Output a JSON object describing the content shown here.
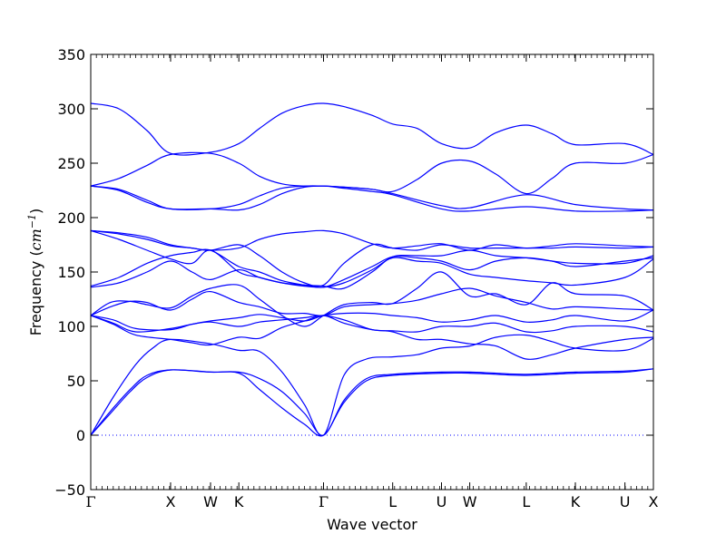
{
  "chart_data": {
    "type": "line",
    "title": "",
    "xlabel": "Wave vector",
    "ylabel_prefix": "Frequency (",
    "ylabel_unit": "cm",
    "ylabel_exp": "−1",
    "ylabel_suffix": ")",
    "ylim": [
      -50,
      350
    ],
    "yticks": [
      -50,
      0,
      50,
      100,
      150,
      200,
      250,
      300,
      350
    ],
    "xlim": [
      0,
      1
    ],
    "grid": false,
    "colors": {
      "bands": "#0000ff",
      "zero_line": "#0000ff",
      "axes": "#000000"
    },
    "kpoints": [
      {
        "label": "Γ",
        "x": 0.0
      },
      {
        "label": "X",
        "x": 0.1419
      },
      {
        "label": "W",
        "x": 0.2129
      },
      {
        "label": "K",
        "x": 0.2632
      },
      {
        "label": "Γ",
        "x": 0.4137
      },
      {
        "label": "L",
        "x": 0.5366
      },
      {
        "label": "U",
        "x": 0.6234
      },
      {
        "label": "W",
        "x": 0.6736
      },
      {
        "label": "L",
        "x": 0.774
      },
      {
        "label": "K",
        "x": 0.8613
      },
      {
        "label": "U",
        "x": 0.9494
      },
      {
        "label": "X",
        "x": 1.0
      }
    ],
    "zero_line": {
      "y": 0,
      "style": "dotted"
    },
    "series": [
      {
        "x": [
          0,
          0.035,
          0.07,
          0.1,
          0.1419,
          0.2129,
          0.2632,
          0.3,
          0.34,
          0.38,
          0.4137,
          0.45,
          0.49,
          0.5366,
          0.6234,
          0.6736,
          0.72,
          0.774,
          0.8613,
          0.9494,
          1.0
        ],
        "y": [
          0,
          20,
          40,
          53,
          60,
          58,
          57,
          42,
          25,
          10,
          0,
          30,
          50,
          55,
          57,
          57,
          56,
          55,
          57,
          58,
          61
        ]
      },
      {
        "x": [
          0,
          0.035,
          0.07,
          0.1,
          0.1419,
          0.2129,
          0.2632,
          0.3,
          0.34,
          0.38,
          0.4137,
          0.45,
          0.49,
          0.5366,
          0.6234,
          0.6736,
          0.72,
          0.774,
          0.8613,
          0.9494,
          1.0
        ],
        "y": [
          0,
          22,
          42,
          55,
          60,
          58,
          58,
          52,
          40,
          20,
          0,
          32,
          52,
          56,
          58,
          58,
          57,
          56,
          58,
          59,
          61
        ]
      },
      {
        "x": [
          0,
          0.04,
          0.08,
          0.11,
          0.1419,
          0.2129,
          0.2632,
          0.3,
          0.34,
          0.38,
          0.4137,
          0.45,
          0.49,
          0.5366,
          0.58,
          0.6234,
          0.6736,
          0.72,
          0.774,
          0.82,
          0.8613,
          0.9494,
          1.0
        ],
        "y": [
          0,
          35,
          65,
          80,
          88,
          84,
          78,
          77,
          58,
          28,
          0,
          55,
          70,
          72,
          74,
          80,
          82,
          90,
          92,
          86,
          80,
          78,
          89
        ]
      },
      {
        "x": [
          0,
          0.04,
          0.08,
          0.1419,
          0.18,
          0.2129,
          0.2632,
          0.3,
          0.34,
          0.38,
          0.4137,
          0.45,
          0.5,
          0.5366,
          0.58,
          0.6234,
          0.6736,
          0.72,
          0.774,
          0.82,
          0.8613,
          0.9494,
          1.0
        ],
        "y": [
          110,
          102,
          92,
          88,
          85,
          83,
          90,
          89,
          99,
          105,
          110,
          103,
          97,
          95,
          88,
          88,
          84,
          82,
          70,
          74,
          80,
          88,
          90
        ]
      },
      {
        "x": [
          0,
          0.04,
          0.08,
          0.1419,
          0.18,
          0.2129,
          0.2632,
          0.3,
          0.34,
          0.38,
          0.4137,
          0.45,
          0.5,
          0.5366,
          0.58,
          0.6234,
          0.6736,
          0.72,
          0.774,
          0.82,
          0.8613,
          0.9494,
          1.0
        ],
        "y": [
          110,
          103,
          95,
          98,
          102,
          104,
          100,
          104,
          106,
          108,
          110,
          106,
          97,
          96,
          95,
          100,
          100,
          103,
          95,
          96,
          100,
          100,
          95
        ]
      },
      {
        "x": [
          0,
          0.04,
          0.08,
          0.1419,
          0.18,
          0.2129,
          0.2632,
          0.3,
          0.34,
          0.38,
          0.4137,
          0.45,
          0.5,
          0.5366,
          0.58,
          0.6234,
          0.6736,
          0.72,
          0.774,
          0.82,
          0.8613,
          0.9494,
          1.0
        ],
        "y": [
          110,
          106,
          98,
          97,
          102,
          105,
          108,
          111,
          108,
          105,
          110,
          112,
          112,
          110,
          108,
          104,
          106,
          110,
          104,
          106,
          110,
          105,
          115
        ]
      },
      {
        "x": [
          0,
          0.035,
          0.07,
          0.1,
          0.1419,
          0.18,
          0.2129,
          0.2632,
          0.3,
          0.34,
          0.38,
          0.4137,
          0.45,
          0.5,
          0.5366,
          0.58,
          0.6234,
          0.6736,
          0.72,
          0.774,
          0.82,
          0.8613,
          0.9494,
          1.0
        ],
        "y": [
          110,
          118,
          123,
          122,
          115,
          125,
          132,
          122,
          118,
          112,
          112,
          110,
          118,
          120,
          121,
          124,
          130,
          135,
          128,
          122,
          116,
          118,
          116,
          115
        ]
      },
      {
        "x": [
          0,
          0.035,
          0.07,
          0.1,
          0.1419,
          0.18,
          0.2129,
          0.2632,
          0.3,
          0.34,
          0.38,
          0.4137,
          0.45,
          0.5,
          0.5366,
          0.58,
          0.6234,
          0.6736,
          0.72,
          0.774,
          0.82,
          0.8613,
          0.9494,
          1.0
        ],
        "y": [
          110,
          122,
          123,
          120,
          117,
          128,
          135,
          138,
          125,
          110,
          100,
          110,
          120,
          122,
          121,
          135,
          150,
          128,
          130,
          120,
          140,
          130,
          128,
          115
        ]
      },
      {
        "x": [
          0,
          0.05,
          0.1,
          0.1419,
          0.18,
          0.2129,
          0.2632,
          0.3,
          0.34,
          0.38,
          0.4137,
          0.45,
          0.5,
          0.5366,
          0.58,
          0.6234,
          0.6736,
          0.72,
          0.774,
          0.82,
          0.8613,
          0.9494,
          1.0
        ],
        "y": [
          136,
          140,
          150,
          160,
          150,
          143,
          152,
          145,
          140,
          137,
          136,
          140,
          152,
          163,
          160,
          158,
          148,
          145,
          142,
          140,
          138,
          145,
          162
        ]
      },
      {
        "x": [
          0,
          0.05,
          0.1,
          0.1419,
          0.18,
          0.2129,
          0.2632,
          0.3,
          0.34,
          0.38,
          0.4137,
          0.45,
          0.5,
          0.5366,
          0.58,
          0.6234,
          0.6736,
          0.72,
          0.774,
          0.82,
          0.8613,
          0.9494,
          1.0
        ],
        "y": [
          137,
          145,
          158,
          165,
          168,
          170,
          155,
          150,
          142,
          138,
          136,
          143,
          155,
          164,
          163,
          160,
          152,
          160,
          163,
          160,
          155,
          160,
          163
        ]
      },
      {
        "x": [
          0,
          0.05,
          0.1,
          0.1419,
          0.18,
          0.2129,
          0.2632,
          0.3,
          0.34,
          0.38,
          0.4137,
          0.45,
          0.5,
          0.5366,
          0.58,
          0.6234,
          0.6736,
          0.72,
          0.774,
          0.82,
          0.8613,
          0.9494,
          1.0
        ],
        "y": [
          188,
          180,
          170,
          162,
          158,
          170,
          150,
          145,
          140,
          138,
          137,
          135,
          150,
          164,
          165,
          165,
          170,
          165,
          163,
          160,
          158,
          158,
          165
        ]
      },
      {
        "x": [
          0,
          0.05,
          0.1,
          0.1419,
          0.18,
          0.2129,
          0.2632,
          0.3,
          0.34,
          0.38,
          0.4137,
          0.45,
          0.5,
          0.5366,
          0.58,
          0.6234,
          0.6736,
          0.72,
          0.774,
          0.82,
          0.8613,
          0.9494,
          1.0
        ],
        "y": [
          188,
          185,
          180,
          174,
          172,
          170,
          175,
          165,
          150,
          140,
          138,
          158,
          175,
          172,
          170,
          175,
          172,
          172,
          172,
          172,
          173,
          172,
          173
        ]
      },
      {
        "x": [
          0,
          0.05,
          0.1,
          0.1419,
          0.18,
          0.2129,
          0.2632,
          0.3,
          0.34,
          0.38,
          0.4137,
          0.45,
          0.5,
          0.5366,
          0.58,
          0.6234,
          0.6736,
          0.72,
          0.774,
          0.82,
          0.8613,
          0.9494,
          1.0
        ],
        "y": [
          188,
          186,
          182,
          175,
          172,
          170,
          172,
          180,
          185,
          187,
          188,
          185,
          176,
          172,
          174,
          176,
          170,
          175,
          172,
          174,
          176,
          174,
          173
        ]
      },
      {
        "x": [
          0,
          0.05,
          0.1,
          0.1419,
          0.2129,
          0.2632,
          0.3,
          0.34,
          0.38,
          0.4137,
          0.45,
          0.5,
          0.5366,
          0.6234,
          0.6736,
          0.774,
          0.8613,
          0.9494,
          1.0
        ],
        "y": [
          229,
          225,
          214,
          208,
          208,
          207,
          212,
          222,
          228,
          229,
          227,
          224,
          221,
          208,
          206,
          210,
          206,
          206,
          207
        ]
      },
      {
        "x": [
          0,
          0.05,
          0.1,
          0.1419,
          0.2129,
          0.2632,
          0.3,
          0.34,
          0.38,
          0.4137,
          0.45,
          0.5,
          0.5366,
          0.6234,
          0.6736,
          0.774,
          0.8613,
          0.9494,
          1.0
        ],
        "y": [
          229,
          226,
          216,
          208,
          208,
          212,
          220,
          227,
          229,
          229,
          228,
          226,
          222,
          211,
          209,
          221,
          212,
          208,
          207
        ]
      },
      {
        "x": [
          0,
          0.05,
          0.1,
          0.1419,
          0.2129,
          0.2632,
          0.3,
          0.34,
          0.38,
          0.4137,
          0.45,
          0.5,
          0.5366,
          0.58,
          0.6234,
          0.6736,
          0.72,
          0.774,
          0.82,
          0.8613,
          0.9494,
          1.0
        ],
        "y": [
          229,
          236,
          248,
          258,
          259,
          250,
          238,
          231,
          229,
          229,
          228,
          226,
          224,
          235,
          250,
          252,
          240,
          222,
          236,
          250,
          250,
          258
        ]
      },
      {
        "x": [
          0,
          0.05,
          0.1,
          0.1419,
          0.2129,
          0.2632,
          0.3,
          0.34,
          0.38,
          0.4137,
          0.45,
          0.5,
          0.5366,
          0.58,
          0.6234,
          0.6736,
          0.72,
          0.774,
          0.82,
          0.8613,
          0.9494,
          1.0
        ],
        "y": [
          305,
          300,
          280,
          259,
          260,
          268,
          282,
          296,
          303,
          305,
          302,
          294,
          286,
          282,
          268,
          264,
          278,
          285,
          277,
          267,
          268,
          258
        ]
      }
    ]
  }
}
